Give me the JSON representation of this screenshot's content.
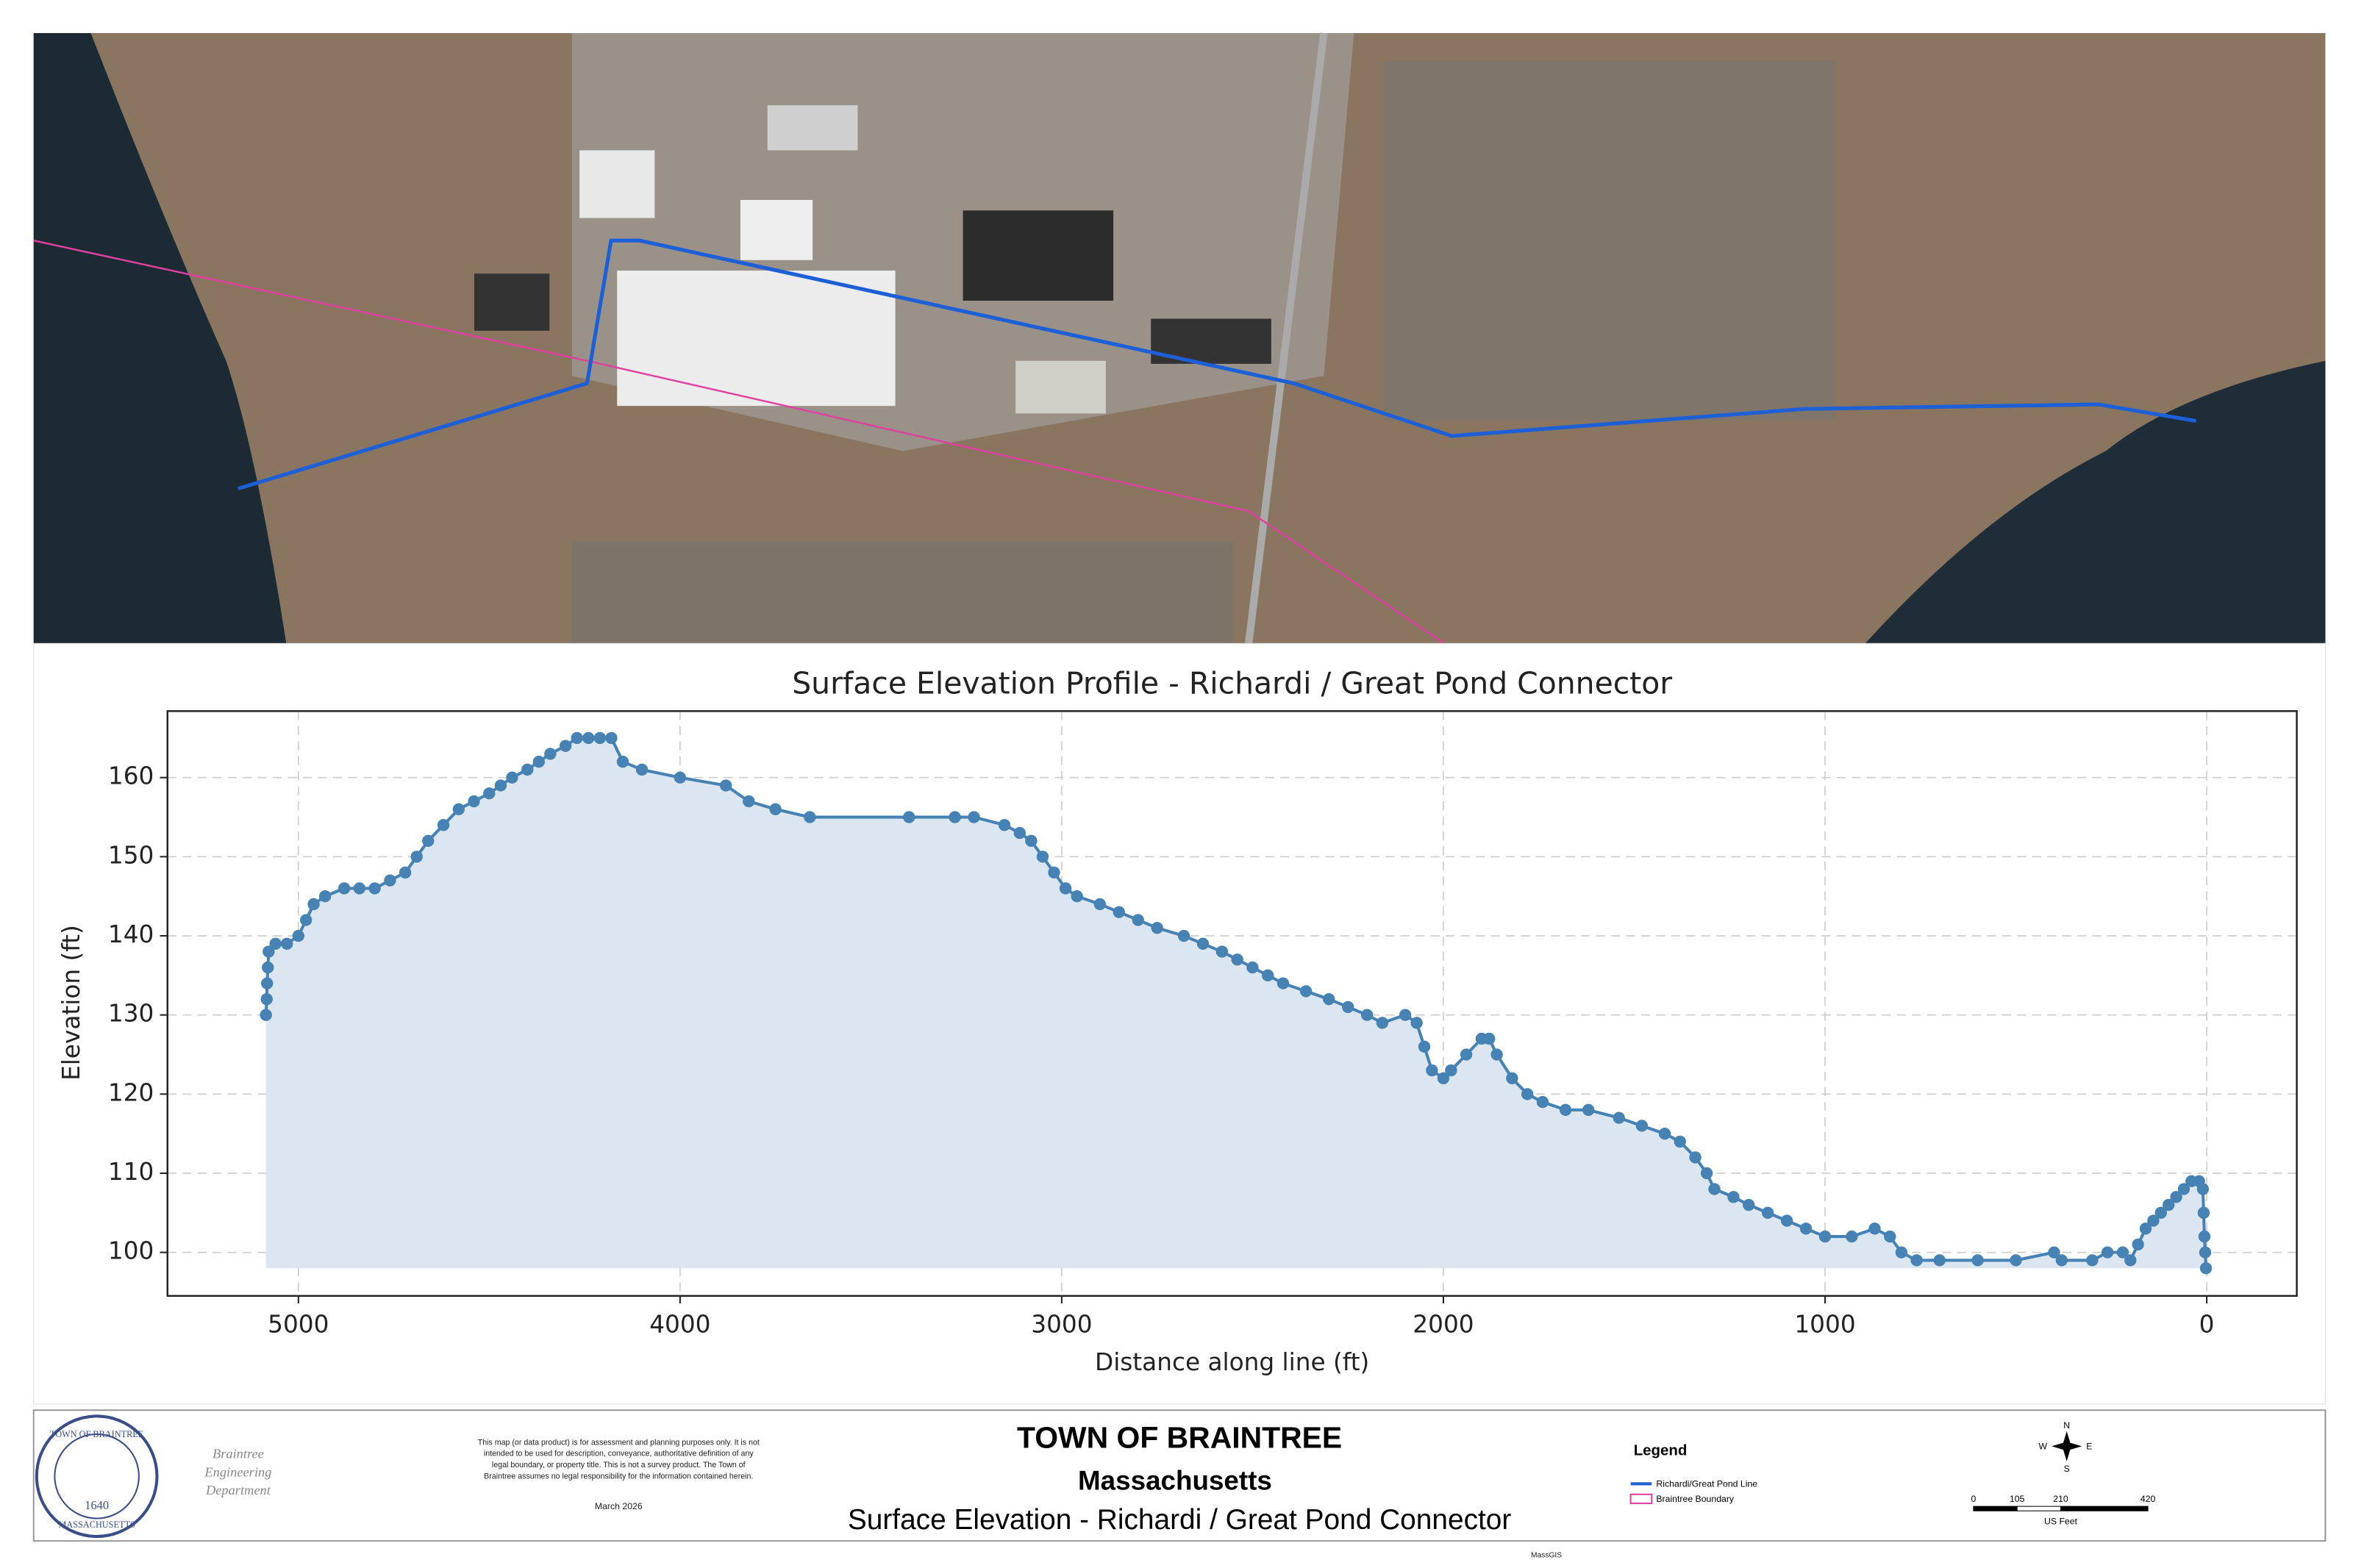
{
  "chart_data": {
    "type": "line",
    "title": "Surface Elevation Profile - Richardi / Great Pond Connector",
    "x_label": "Distance along line (ft)",
    "y_label": "Elevation (ft)",
    "color": "#4682b4",
    "fill_color": "#dbe6f0",
    "grid": true,
    "xlim": [
      5343,
      -236
    ],
    "ylim": [
      94.5,
      168.4
    ],
    "xticks": [
      5000,
      4000,
      3000,
      2000,
      1000,
      0
    ],
    "yticks": [
      100,
      110,
      120,
      130,
      140,
      150,
      160
    ],
    "x": [
      5085,
      5083,
      5082,
      5080,
      5078,
      5060,
      5030,
      5000,
      4980,
      4960,
      4930,
      4880,
      4840,
      4800,
      4760,
      4720,
      4690,
      4660,
      4620,
      4580,
      4540,
      4500,
      4470,
      4440,
      4400,
      4370,
      4340,
      4300,
      4270,
      4240,
      4210,
      4180,
      4150,
      4100,
      4000,
      3880,
      3820,
      3750,
      3660,
      3400,
      3280,
      3230,
      3150,
      3110,
      3080,
      3050,
      3020,
      2990,
      2960,
      2900,
      2850,
      2800,
      2750,
      2680,
      2630,
      2580,
      2540,
      2500,
      2460,
      2420,
      2360,
      2300,
      2250,
      2200,
      2160,
      2100,
      2070,
      2050,
      2030,
      2000,
      1980,
      1940,
      1900,
      1880,
      1860,
      1820,
      1780,
      1740,
      1680,
      1620,
      1540,
      1480,
      1420,
      1380,
      1340,
      1310,
      1290,
      1240,
      1200,
      1150,
      1100,
      1050,
      1000,
      930,
      870,
      830,
      800,
      760,
      700,
      600,
      500,
      400,
      380,
      300,
      260,
      220,
      200,
      180,
      160,
      140,
      120,
      100,
      80,
      60,
      40,
      20,
      10,
      8,
      6,
      4,
      2
    ],
    "values": [
      130,
      132,
      134,
      136,
      138,
      139,
      139,
      140,
      142,
      144,
      145,
      146,
      146,
      146,
      147,
      148,
      150,
      152,
      154,
      156,
      157,
      158,
      159,
      160,
      161,
      162,
      163,
      164,
      165,
      165,
      165,
      165,
      162,
      161,
      160,
      159,
      157,
      156,
      155,
      155,
      155,
      155,
      154,
      153,
      152,
      150,
      148,
      146,
      145,
      144,
      143,
      142,
      141,
      140,
      139,
      138,
      137,
      136,
      135,
      134,
      133,
      132,
      131,
      130,
      129,
      130,
      129,
      126,
      123,
      122,
      123,
      125,
      127,
      127,
      125,
      122,
      120,
      119,
      118,
      118,
      117,
      116,
      115,
      114,
      112,
      110,
      108,
      107,
      106,
      105,
      104,
      103,
      102,
      102,
      103,
      102,
      100,
      99,
      99,
      99,
      99,
      100,
      99,
      99,
      100,
      100,
      99,
      101,
      103,
      104,
      105,
      106,
      107,
      108,
      109,
      109,
      108,
      105,
      102,
      100,
      98
    ]
  },
  "footer": {
    "seal": {
      "top": "TOWN OF BRAINTREE",
      "year": "1640",
      "bottom": "MASSACHUSETTS"
    },
    "department": [
      "Braintree",
      "Engineering",
      "Department"
    ],
    "disclaimer": [
      "This map (or data product) is for assessment and planning purposes only. It is not",
      "intended to be used for description, conveyance, authoritative definition of any",
      "legal boundary, or property title. This is not a survey product. The Town  of",
      "Braintree assumes no legal responsibility for the information contained herein."
    ],
    "date": "March 2026",
    "title": "TOWN OF BRAINTREE",
    "state": "Massachusetts",
    "subtitle": "Surface Elevation - Richardi / Great Pond Connector",
    "source": "MassGIS",
    "legend": {
      "title": "Legend",
      "items": [
        "Richardi/Great Pond Line",
        "Braintree Boundary"
      ]
    },
    "compass": {
      "n": "N",
      "e": "E",
      "s": "S",
      "w": "W"
    },
    "scale_bar": {
      "ticks": [
        0,
        105,
        210,
        420
      ],
      "unit": "US Feet"
    }
  }
}
